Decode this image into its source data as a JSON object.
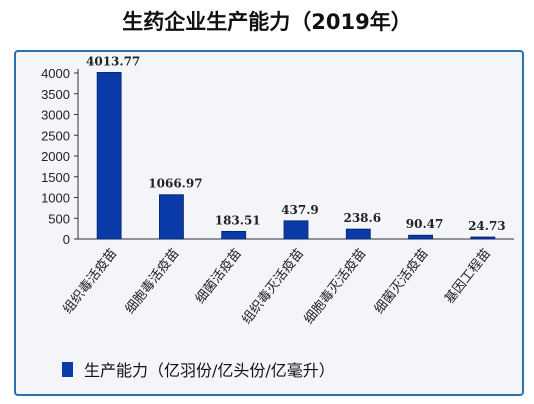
{
  "chart_data": {
    "type": "bar",
    "title": "生药企业生产能力（2019年）",
    "categories": [
      "组织毒活疫苗",
      "细胞毒活疫苗",
      "细菌活疫苗",
      "组织毒灭活疫苗",
      "细胞毒灭活疫苗",
      "细菌灭活疫苗",
      "基因工程苗"
    ],
    "series": [
      {
        "name": "生产能力（亿羽份/亿头份/亿毫升）",
        "values": [
          4013.77,
          1066.97,
          183.51,
          437.9,
          238.6,
          90.47,
          24.73
        ],
        "labels": [
          "4013.77",
          "1066.97",
          "183.51",
          "437.9",
          "238.6",
          "90.47",
          "24.73"
        ]
      }
    ],
    "ylim": [
      0,
      4000
    ],
    "yticks": [
      0,
      500,
      1000,
      1500,
      2000,
      2500,
      3000,
      3500,
      4000
    ],
    "grid": false,
    "legend_position": "bottom-left",
    "colors": {
      "bar": "#0a3aa8",
      "bar_edge": "#061f6b"
    }
  }
}
